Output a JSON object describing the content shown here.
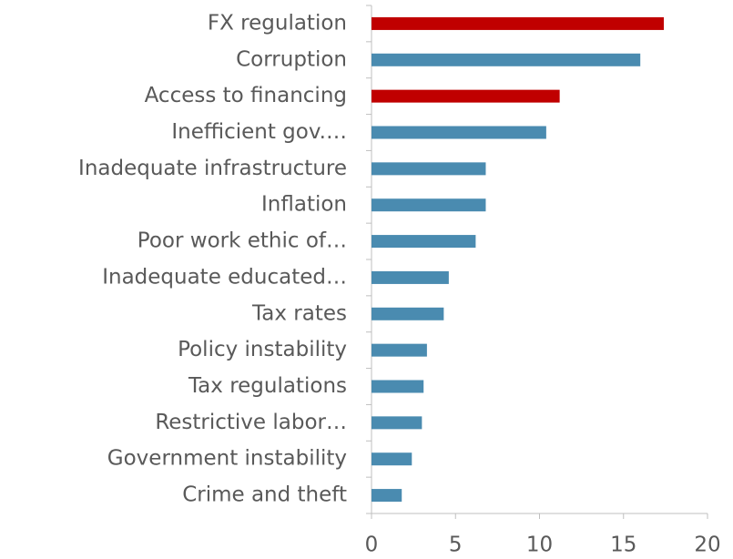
{
  "chart_data": {
    "type": "barh",
    "categories": [
      "FX regulation",
      "Corruption",
      "Access to financing",
      "Inefficient gov.…",
      "Inadequate infrastructure",
      "Inflation",
      "Poor work ethic of…",
      "Inadequate educated…",
      "Tax rates",
      "Policy instability",
      "Tax regulations",
      "Restrictive labor…",
      "Government instability",
      "Crime and theft"
    ],
    "values": [
      17.4,
      16.0,
      11.2,
      10.4,
      6.8,
      6.8,
      6.2,
      4.6,
      4.3,
      3.3,
      3.1,
      3.0,
      2.4,
      1.8
    ],
    "colors": [
      "#c00000",
      "#4a8bb0",
      "#c00000",
      "#4a8bb0",
      "#4a8bb0",
      "#4a8bb0",
      "#4a8bb0",
      "#4a8bb0",
      "#4a8bb0",
      "#4a8bb0",
      "#4a8bb0",
      "#4a8bb0",
      "#4a8bb0",
      "#4a8bb0"
    ],
    "xlim": [
      0,
      20
    ],
    "xticks": [
      0,
      5,
      10,
      15,
      20
    ],
    "grid": false
  }
}
